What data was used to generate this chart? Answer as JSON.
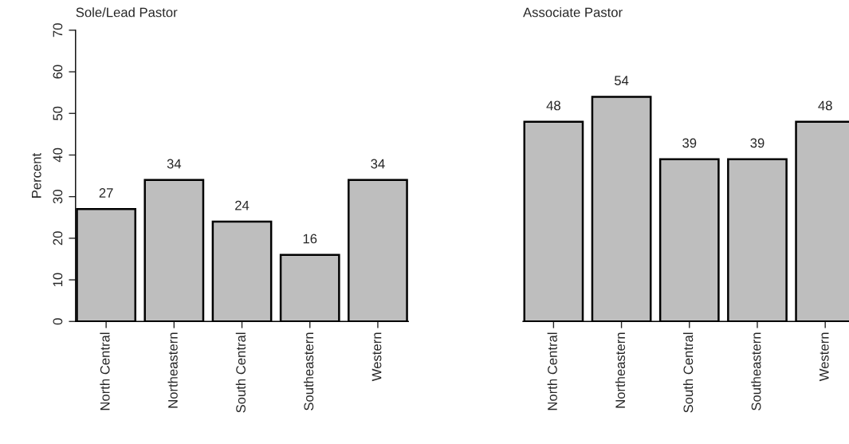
{
  "chart_data": [
    {
      "type": "bar",
      "title": "Sole/Lead Pastor",
      "ylabel": "Percent",
      "categories": [
        "North Central",
        "Northeastern",
        "South Central",
        "Southeastern",
        "Western"
      ],
      "values": [
        27,
        34,
        24,
        16,
        34
      ],
      "color": "#bebebe",
      "ylim": [
        0,
        70
      ],
      "yticks": [
        0,
        10,
        20,
        30,
        40,
        50,
        60,
        70
      ],
      "data_labels": true,
      "grid": false,
      "legend": false
    },
    {
      "type": "bar",
      "title": "Associate Pastor",
      "categories": [
        "North Central",
        "Northeastern",
        "South Central",
        "Southeastern",
        "Western"
      ],
      "values": [
        48,
        54,
        39,
        39,
        48
      ],
      "color": "#bebebe",
      "ylim": [
        0,
        70
      ],
      "yticks": [
        0,
        10,
        20,
        30,
        40,
        50,
        60,
        70
      ],
      "data_labels": true,
      "grid": false,
      "legend": false,
      "tick_labels": "x"
    }
  ]
}
